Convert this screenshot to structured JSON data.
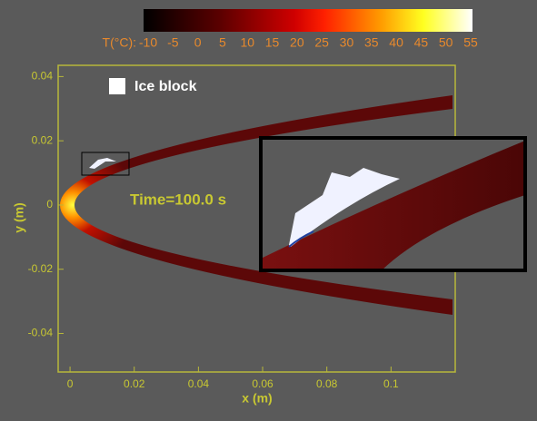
{
  "chart_data": {
    "type": "contour",
    "colorbar": {
      "label": "T(°C):",
      "lim": [
        -10,
        55
      ],
      "ticks": [
        -10,
        -5,
        0,
        5,
        10,
        15,
        20,
        25,
        30,
        35,
        40,
        45,
        50,
        55
      ]
    },
    "xlabel": "x (m)",
    "ylabel": "y (m)",
    "xlim": [
      -0.0037,
      0.12
    ],
    "xticks": [
      0,
      0.02,
      0.04,
      0.06,
      0.08,
      0.1
    ],
    "ylim": [
      -0.052,
      0.0435
    ],
    "yticks": [
      -0.04,
      -0.02,
      0,
      0.02,
      0.04
    ],
    "legend": "Ice block",
    "annotation": "Time=100.0 s"
  }
}
